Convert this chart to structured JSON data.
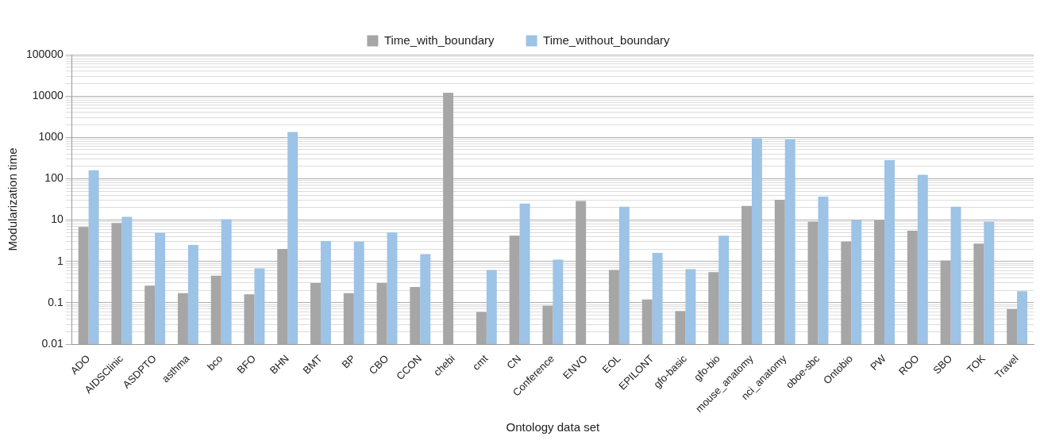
{
  "chart_data": {
    "type": "bar",
    "xlabel": "Ontology data set",
    "ylabel": "Modularization time",
    "log": "y",
    "grid": "y",
    "legend": "top",
    "categories": [
      "ADO",
      "AIDSClinic",
      "ASDPTO",
      "asthma",
      "bco",
      "BFO",
      "BHN",
      "BMT",
      "BP",
      "CBO",
      "CCON",
      "chebi",
      "cmt",
      "CN",
      "Conference",
      "ENVO",
      "EOL",
      "EPILONT",
      "gfo-basic",
      "gfo-bio",
      "mouse_anatomy",
      "nci_anatomy",
      "oboe-sbc",
      "Ontobio",
      "PW",
      "ROO",
      "SBO",
      "TOK",
      "Travel"
    ],
    "series": [
      {
        "name": "Time_with_boundary",
        "color": "#a6a6a6",
        "values": [
          6.8,
          8.5,
          0.26,
          0.17,
          0.45,
          0.16,
          2,
          0.3,
          0.17,
          0.3,
          0.24,
          12000,
          0.06,
          4.2,
          0.085,
          29,
          0.62,
          0.12,
          0.063,
          0.55,
          22,
          31,
          9.2,
          3,
          9.8,
          5.5,
          1.05,
          2.7,
          0.07
        ]
      },
      {
        "name": "Time_without_boundary",
        "color": "#9dc3e6",
        "values": [
          160,
          12,
          4.9,
          2.5,
          10.5,
          0.68,
          1350,
          3.1,
          3,
          5,
          1.5,
          null,
          0.62,
          25,
          1.1,
          null,
          21,
          1.6,
          0.65,
          4.2,
          950,
          900,
          37,
          9.8,
          280,
          125,
          21,
          9.2,
          0.19
        ]
      }
    ],
    "ylim": [
      0.01,
      100000
    ],
    "yticks": [
      0.01,
      {
        "value": 0.02,
        "label": null
      },
      {
        "value": 0.03,
        "label": null
      },
      {
        "value": 0.04,
        "label": null
      },
      {
        "value": 0.05,
        "label": null
      },
      {
        "value": 0.06,
        "label": null
      },
      {
        "value": 0.07,
        "label": null
      },
      {
        "value": 0.08,
        "label": null
      },
      {
        "value": 0.09,
        "label": null
      },
      0.1,
      {
        "value": 0.2,
        "label": null
      },
      {
        "value": 0.3,
        "label": null
      },
      {
        "value": 0.4,
        "label": null
      },
      {
        "value": 0.5,
        "label": null
      },
      {
        "value": 0.6,
        "label": null
      },
      {
        "value": 0.7,
        "label": null
      },
      {
        "value": 0.8,
        "label": null
      },
      {
        "value": 0.9,
        "label": null
      },
      1,
      {
        "value": 2,
        "label": null
      },
      {
        "value": 3,
        "label": null
      },
      {
        "value": 4,
        "label": null
      },
      {
        "value": 5,
        "label": null
      },
      {
        "value": 6,
        "label": null
      },
      {
        "value": 7,
        "label": null
      },
      {
        "value": 8,
        "label": null
      },
      {
        "value": 9,
        "label": null
      },
      10,
      {
        "value": 20,
        "label": null
      },
      {
        "value": 30,
        "label": null
      },
      {
        "value": 40,
        "label": null
      },
      {
        "value": 50,
        "label": null
      },
      {
        "value": 60,
        "label": null
      },
      {
        "value": 70,
        "label": null
      },
      {
        "value": 80,
        "label": null
      },
      {
        "value": 90,
        "label": null
      },
      100,
      {
        "value": 200,
        "label": null
      },
      {
        "value": 300,
        "label": null
      },
      {
        "value": 400,
        "label": null
      },
      {
        "value": 500,
        "label": null
      },
      {
        "value": 600,
        "label": null
      },
      {
        "value": 700,
        "label": null
      },
      {
        "value": 800,
        "label": null
      },
      {
        "value": 900,
        "label": null
      },
      1000,
      {
        "value": 2000,
        "label": null
      },
      {
        "value": 3000,
        "label": null
      },
      {
        "value": 4000,
        "label": null
      },
      {
        "value": 5000,
        "label": null
      },
      {
        "value": 6000,
        "label": null
      },
      {
        "value": 7000,
        "label": null
      },
      {
        "value": 8000,
        "label": null
      },
      {
        "value": 9000,
        "label": null
      },
      10000,
      {
        "value": 20000,
        "label": null
      },
      {
        "value": 30000,
        "label": null
      },
      {
        "value": 40000,
        "label": null
      },
      {
        "value": 50000,
        "label": null
      },
      {
        "value": 60000,
        "label": null
      },
      {
        "value": 70000,
        "label": null
      },
      {
        "value": 80000,
        "label": null
      },
      {
        "value": 90000,
        "label": null
      },
      100000
    ]
  }
}
